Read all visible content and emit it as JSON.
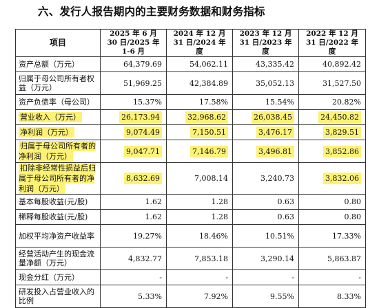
{
  "heading": "六、发行人报告期内的主要财务数据和财务指标",
  "table": {
    "headers": [
      "项目",
      "2025 年 6 月 30 日/2025 年 1-6 月",
      "2024 年 12 月 31 日/2024 年度",
      "2023 年 12 月 31 日/2023 年度",
      "2022 年 12 月 31 日/2022 年度"
    ],
    "rows": [
      {
        "label": "资产总额（万元）",
        "values": [
          "64,379.69",
          "54,062.11",
          "43,335.42",
          "40,892.42"
        ],
        "highlight": false
      },
      {
        "label": "归属于母公司所有者权益（万元）",
        "values": [
          "51,969.25",
          "42,384.89",
          "35,052.13",
          "31,527.50"
        ],
        "highlight": false
      },
      {
        "label": "资产负债率（母公司）",
        "values": [
          "15.37%",
          "17.58%",
          "15.54%",
          "20.82%"
        ],
        "highlight": false
      },
      {
        "label": "营业收入（万元）",
        "values": [
          "26,173.94",
          "32,968.62",
          "26,038.45",
          "24,450.82"
        ],
        "highlight": true
      },
      {
        "label": "净利润（万元）",
        "values": [
          "9,074.49",
          "7,150.51",
          "3,476.17",
          "3,829.51"
        ],
        "highlight": true
      },
      {
        "label": "归属于母公司所有者的净利润（万元）",
        "values": [
          "9,047.71",
          "7,146.79",
          "3,496.81",
          "3,852.86"
        ],
        "highlight": true
      },
      {
        "label": "扣除非经常性损益后归属于母公司所有者的净利润（万元）",
        "values": [
          "8,632.69",
          "7,008.14",
          "3,240.73",
          "3,832.06"
        ],
        "highlight": true
      },
      {
        "label": "基本每股收益(元/股)",
        "values": [
          "1.62",
          "1.28",
          "0.63",
          "0.80"
        ],
        "highlight": false
      },
      {
        "label": "稀释每股收益(元/股)",
        "values": [
          "1.62",
          "1.28",
          "0.63",
          "0.80"
        ],
        "highlight": false
      },
      {
        "label": "加权平均净资产收益率",
        "values": [
          "19.27%",
          "18.46%",
          "10.51%",
          "17.33%"
        ],
        "highlight": false
      },
      {
        "label": "经营活动产生的现金流量净额（万元）",
        "values": [
          "4,832.77",
          "7,853.18",
          "3,290.14",
          "5,863.87"
        ],
        "highlight": false
      },
      {
        "label": "现金分红（万元）",
        "values": [
          "-",
          "-",
          "-",
          "-"
        ],
        "highlight": false
      },
      {
        "label": "研发投入占营业收入的比例",
        "values": [
          "5.33%",
          "7.92%",
          "9.55%",
          "8.33%"
        ],
        "highlight": false
      }
    ]
  }
}
